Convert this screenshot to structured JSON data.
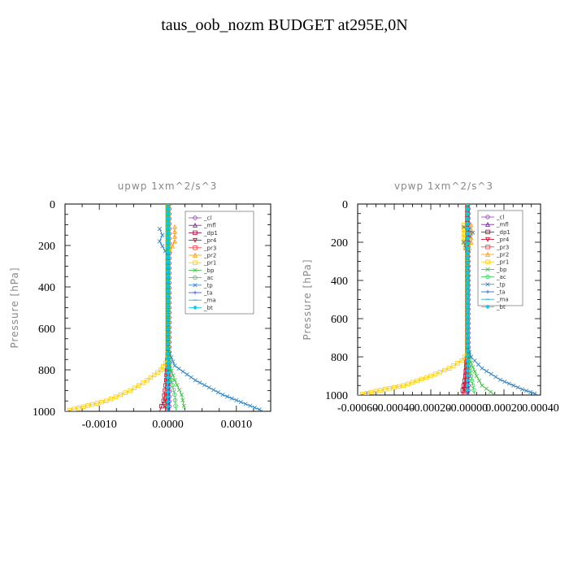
{
  "title": "taus_oob_nozm  BUDGET at295E,0N",
  "chart_data": [
    {
      "type": "line",
      "title": "upwp   1xm^2/s^3",
      "ylabel": "Pressure [hPa]",
      "xlabel": "",
      "xlim": [
        -0.0015,
        0.0015
      ],
      "ylim": [
        0,
        1000
      ],
      "y_inverted": true,
      "xticks": [
        "-0.0010",
        "0.0000",
        "0.0010"
      ],
      "xtick_values": [
        -0.001,
        0,
        0.001
      ],
      "yticks": [
        "0",
        "200",
        "400",
        "600",
        "800",
        "1000"
      ],
      "ytick_values": [
        0,
        200,
        400,
        600,
        800,
        1000
      ],
      "legend": [
        "_cl",
        "_mfl",
        "_dp1",
        "_pr4",
        "_pr3",
        "_pr2",
        "_pr1",
        "_bp",
        "_ac",
        "_tp",
        "_ta",
        "_ma",
        "_bt"
      ],
      "series": [
        {
          "name": "_cl",
          "color": "#8e44ad",
          "points": [
            [
              2e-05,
              0
            ],
            [
              2e-05,
              500
            ],
            [
              2e-05,
              1000
            ]
          ]
        },
        {
          "name": "_mfl",
          "color": "#6a1b9a",
          "points": [
            [
              0,
              0
            ],
            [
              0,
              500
            ],
            [
              0,
              1000
            ]
          ]
        },
        {
          "name": "_dp1",
          "color": "#a00030",
          "points": [
            [
              0,
              0
            ],
            [
              0,
              700
            ],
            [
              -2e-05,
              850
            ],
            [
              -6e-05,
              950
            ],
            [
              -0.00012,
              1000
            ]
          ]
        },
        {
          "name": "_pr4",
          "color": "#cc0022",
          "points": [
            [
              0,
              0
            ],
            [
              0,
              750
            ],
            [
              -1e-05,
              900
            ],
            [
              -4e-05,
              1000
            ]
          ]
        },
        {
          "name": "_pr3",
          "color": "#ff3333",
          "points": [
            [
              0,
              0
            ],
            [
              0,
              760
            ],
            [
              -1e-05,
              900
            ],
            [
              -3e-05,
              1000
            ]
          ]
        },
        {
          "name": "_pr2",
          "color": "#ff9900",
          "points": [
            [
              0.0001,
              110
            ],
            [
              0.0001,
              180
            ],
            [
              0,
              250
            ],
            [
              0,
              800
            ]
          ]
        },
        {
          "name": "_pr1",
          "color": "#ffcc00",
          "points": [
            [
              0,
              0
            ],
            [
              0,
              750
            ],
            [
              -0.0001,
              800
            ],
            [
              -0.0003,
              850
            ],
            [
              -0.00055,
              900
            ],
            [
              -0.0009,
              950
            ],
            [
              -0.0015,
              1000
            ]
          ]
        },
        {
          "name": "_bp",
          "color": "#44bb44",
          "points": [
            [
              0,
              0
            ],
            [
              0,
              700
            ],
            [
              3e-05,
              780
            ],
            [
              0.0001,
              850
            ],
            [
              0.0002,
              920
            ],
            [
              0.00025,
              1000
            ]
          ]
        },
        {
          "name": "_ac",
          "color": "#33cc55",
          "points": [
            [
              0,
              0
            ],
            [
              0,
              750
            ],
            [
              5e-05,
              850
            ],
            [
              0.0001,
              920
            ],
            [
              0.00012,
              1000
            ]
          ]
        },
        {
          "name": "_tp",
          "color": "#2a7fc1",
          "points": [
            [
              -0.00012,
              120
            ],
            [
              -8e-05,
              150
            ],
            [
              -0.00012,
              180
            ],
            [
              0,
              250
            ],
            [
              0,
              700
            ],
            [
              0.0001,
              780
            ],
            [
              0.0004,
              850
            ],
            [
              0.0008,
              920
            ],
            [
              0.0014,
              1000
            ]
          ]
        },
        {
          "name": "_ta",
          "color": "#2255cc",
          "points": [
            [
              0,
              0
            ],
            [
              0,
              1000
            ]
          ]
        },
        {
          "name": "_ma",
          "color": "#22aacc",
          "points": [
            [
              0,
              0
            ],
            [
              0,
              1000
            ]
          ]
        },
        {
          "name": "_bt",
          "color": "#00ccee",
          "points": [
            [
              0,
              0
            ],
            [
              0,
              1000
            ]
          ]
        }
      ]
    },
    {
      "type": "line",
      "title": "vpwp   1xm^2/s^3",
      "ylabel": "Pressure [hPa]",
      "xlabel": "",
      "xlim": [
        -0.0006,
        0.0004
      ],
      "ylim": [
        0,
        1000
      ],
      "y_inverted": true,
      "xticks": [
        "-0.00060",
        "-0.00040",
        "-0.00020",
        "-0.00000",
        "0.00020",
        "0.00040"
      ],
      "xtick_values": [
        -0.0006,
        -0.0004,
        -0.0002,
        0,
        0.0002,
        0.0004
      ],
      "yticks": [
        "0",
        "200",
        "400",
        "600",
        "800",
        "1000"
      ],
      "ytick_values": [
        0,
        200,
        400,
        600,
        800,
        1000
      ],
      "legend": [
        "_cl",
        "_mfl",
        "_dp1",
        "_pr4",
        "_pr3",
        "_pr2",
        "_pr1",
        "_bp",
        "_ac",
        "_tp",
        "_ta",
        "_ma",
        "_bt"
      ],
      "series": [
        {
          "name": "_cl",
          "color": "#8e44ad",
          "points": [
            [
              5e-06,
              0
            ],
            [
              5e-06,
              500
            ],
            [
              5e-06,
              1000
            ]
          ]
        },
        {
          "name": "_mfl",
          "color": "#6a1b9a",
          "points": [
            [
              0,
              0
            ],
            [
              0,
              500
            ],
            [
              0,
              1000
            ]
          ]
        },
        {
          "name": "_dp1",
          "color": "#a00030",
          "points": [
            [
              0,
              0
            ],
            [
              0,
              780
            ],
            [
              -1e-05,
              900
            ],
            [
              -3e-05,
              1000
            ]
          ]
        },
        {
          "name": "_pr4",
          "color": "#cc0022",
          "points": [
            [
              0,
              0
            ],
            [
              0,
              800
            ],
            [
              -1e-05,
              920
            ],
            [
              -2e-05,
              1000
            ]
          ]
        },
        {
          "name": "_pr3",
          "color": "#ff3333",
          "points": [
            [
              0,
              0
            ],
            [
              0,
              800
            ],
            [
              -5e-06,
              920
            ],
            [
              -1e-05,
              1000
            ]
          ]
        },
        {
          "name": "_pr2",
          "color": "#ff9900",
          "points": [
            [
              2e-05,
              110
            ],
            [
              2e-05,
              200
            ],
            [
              0,
              260
            ],
            [
              0,
              800
            ]
          ]
        },
        {
          "name": "_pr1",
          "color": "#ffcc00",
          "points": [
            [
              -2e-05,
              110
            ],
            [
              -2e-05,
              200
            ],
            [
              0,
              260
            ],
            [
              0,
              780
            ],
            [
              -3e-05,
              820
            ],
            [
              -0.0001,
              860
            ],
            [
              -0.0002,
              900
            ],
            [
              -0.00035,
              950
            ],
            [
              -0.0006,
              1000
            ]
          ]
        },
        {
          "name": "_bp",
          "color": "#44bb44",
          "points": [
            [
              0,
              0
            ],
            [
              0,
              650
            ],
            [
              5e-06,
              750
            ],
            [
              2e-05,
              830
            ],
            [
              5e-05,
              900
            ],
            [
              8e-05,
              950
            ],
            [
              0.00015,
              1000
            ]
          ]
        },
        {
          "name": "_ac",
          "color": "#33cc55",
          "points": [
            [
              0,
              0
            ],
            [
              0,
              800
            ],
            [
              2e-05,
              900
            ],
            [
              4e-05,
              1000
            ]
          ]
        },
        {
          "name": "_tp",
          "color": "#2a7fc1",
          "points": [
            [
              -2e-05,
              120
            ],
            [
              3e-05,
              150
            ],
            [
              -2e-05,
              200
            ],
            [
              0,
              260
            ],
            [
              0,
              750
            ],
            [
              2e-05,
              800
            ],
            [
              8e-05,
              860
            ],
            [
              0.00018,
              920
            ],
            [
              0.0003,
              970
            ],
            [
              0.00039,
              1000
            ]
          ]
        },
        {
          "name": "_ta",
          "color": "#2255cc",
          "points": [
            [
              0,
              0
            ],
            [
              0,
              1000
            ]
          ]
        },
        {
          "name": "_ma",
          "color": "#22aacc",
          "points": [
            [
              0,
              0
            ],
            [
              0,
              1000
            ]
          ]
        },
        {
          "name": "_bt",
          "color": "#00ccee",
          "points": [
            [
              0,
              0
            ],
            [
              0,
              1000
            ]
          ]
        }
      ]
    }
  ]
}
